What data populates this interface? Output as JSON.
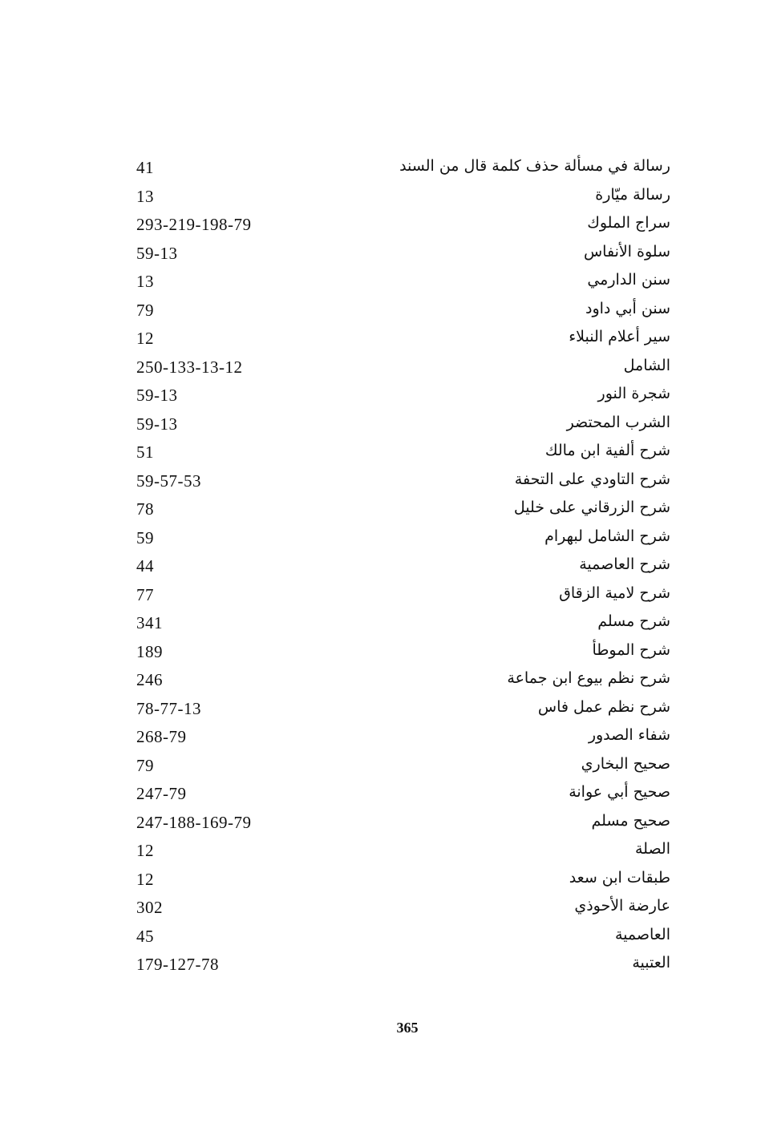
{
  "index": {
    "entries": [
      {
        "title": "رسالة في مسألة حذف كلمة قال من السند",
        "pages": "41"
      },
      {
        "title": "رسالة ميّارة",
        "pages": "13"
      },
      {
        "title": "سراج الملوك",
        "pages": "293-219-198-79"
      },
      {
        "title": "سلوة الأنفاس",
        "pages": "59-13"
      },
      {
        "title": "سنن الدارمي",
        "pages": "13"
      },
      {
        "title": "سنن أبي داود",
        "pages": "79"
      },
      {
        "title": "سير أعلام النبلاء",
        "pages": "12"
      },
      {
        "title": "الشامل",
        "pages": "250-133-13-12"
      },
      {
        "title": "شجرة النور",
        "pages": "59-13"
      },
      {
        "title": "الشرب المحتضر",
        "pages": "59-13"
      },
      {
        "title": "شرح ألفية ابن مالك",
        "pages": "51"
      },
      {
        "title": "شرح التاودي على التحفة",
        "pages": "59-57-53"
      },
      {
        "title": "شرح الزرقاني على خليل",
        "pages": "78"
      },
      {
        "title": "شرح الشامل لبهرام",
        "pages": "59"
      },
      {
        "title": "شرح العاصمية",
        "pages": "44"
      },
      {
        "title": "شرح لامية الزقاق",
        "pages": "77"
      },
      {
        "title": "شرح مسلم",
        "pages": "341"
      },
      {
        "title": "شرح الموطأ",
        "pages": "189"
      },
      {
        "title": "شرح نظم بيوع ابن جماعة",
        "pages": "246"
      },
      {
        "title": "شرح نظم عمل فاس",
        "pages": "78-77-13"
      },
      {
        "title": "شفاء الصدور",
        "pages": "268-79"
      },
      {
        "title": "صحيح البخاري",
        "pages": "79"
      },
      {
        "title": "صحيح أبي عوانة",
        "pages": "247-79"
      },
      {
        "title": "صحيح مسلم",
        "pages": "247-188-169-79"
      },
      {
        "title": "الصلة",
        "pages": "12"
      },
      {
        "title": "طبقات ابن سعد",
        "pages": "12"
      },
      {
        "title": "عارضة الأحوذي",
        "pages": "302"
      },
      {
        "title": "العاصمية",
        "pages": "45"
      },
      {
        "title": "العتبية",
        "pages": "179-127-78"
      }
    ]
  },
  "footer": {
    "page_number": "365"
  }
}
